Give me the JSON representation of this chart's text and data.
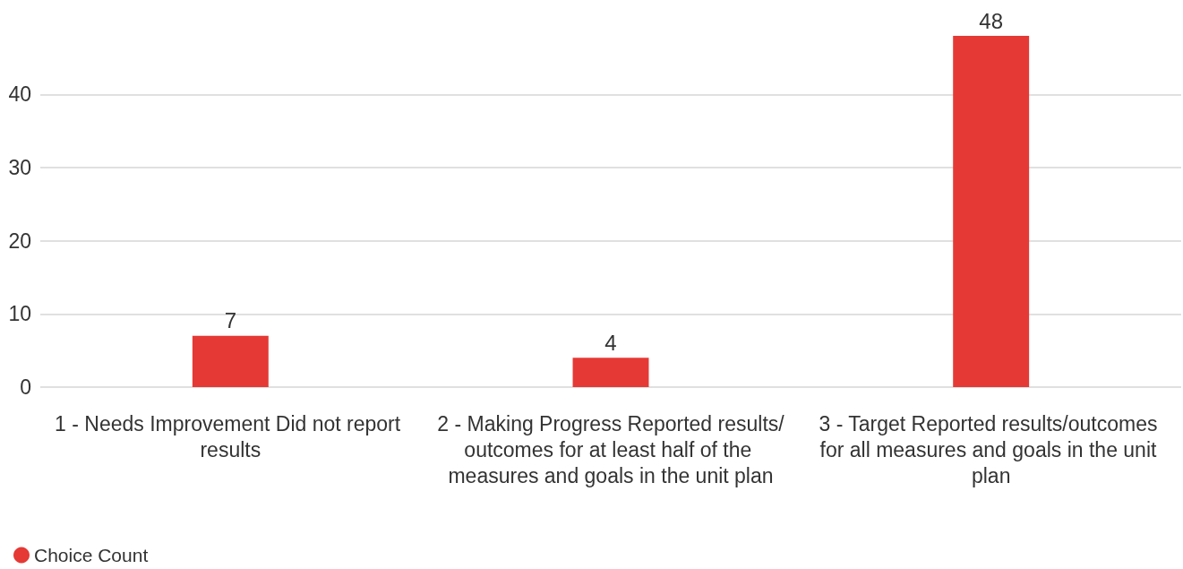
{
  "chart_data": {
    "type": "bar",
    "categories": [
      "1 - Needs Improvement Did not report results",
      "2 - Making Progress Reported results/outcomes for at least half of the measures and goals in the unit plan",
      "3 - Target Reported results/outcomes for all measures and goals in the unit plan"
    ],
    "series": [
      {
        "name": "Choice Count",
        "color": "#e53935",
        "values": [
          7,
          4,
          48
        ]
      }
    ],
    "ylim": [
      0,
      48
    ],
    "yticks": [
      0,
      10,
      20,
      30,
      40
    ],
    "grid": "y",
    "data_labels": true,
    "legend": "bottom left"
  }
}
